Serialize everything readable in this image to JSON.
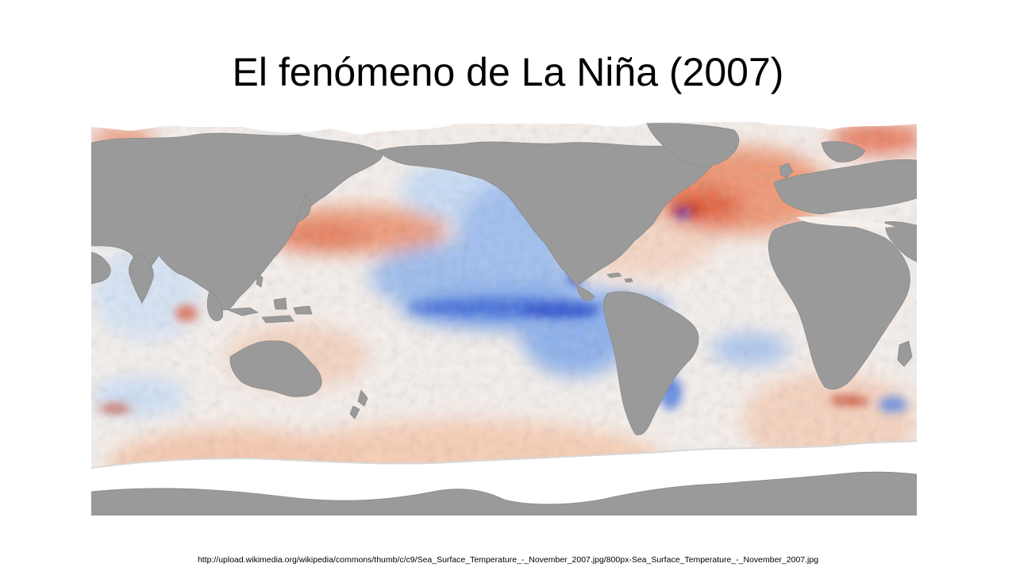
{
  "slide": {
    "title": "El fenómeno de La Niña (2007)",
    "source_url": "http://upload.wikimedia.org/wikipedia/commons/thumb/c/c9/Sea_Surface_Temperature_-_November_2007.jpg/800px-Sea_Surface_Temperature_-_November_2007.jpg"
  },
  "map": {
    "subject": "sea surface temperature anomaly",
    "colors": {
      "land": "#9a9a9a",
      "ice": "#ffffff",
      "neutral_ocean": "#f6f0ec",
      "warm_light": "#f8cdb4",
      "warm": "#ee8a64",
      "warm_strong": "#c8301a",
      "cool_light": "#cfe0f6",
      "cool": "#7aa4ea",
      "cool_strong": "#1c3fc8"
    }
  }
}
